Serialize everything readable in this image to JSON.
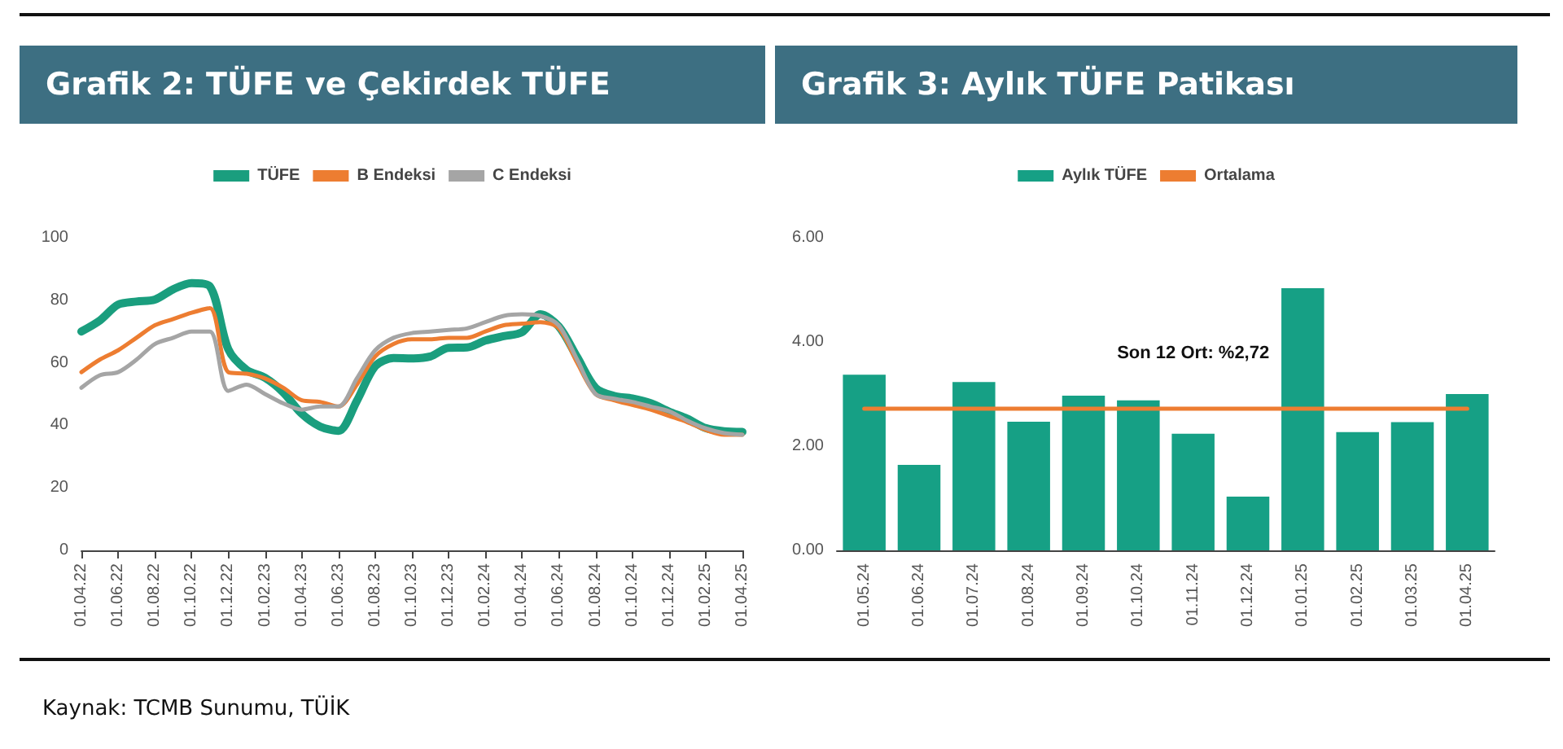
{
  "chart_data": [
    {
      "type": "line",
      "title": "Grafik 2: TÜFE ve Çekirdek TÜFE",
      "categories": [
        "01.04.22",
        null,
        "01.06.22",
        null,
        "01.08.22",
        null,
        "01.10.22",
        null,
        "01.12.22",
        null,
        "01.02.23",
        null,
        "01.04.23",
        null,
        "01.06.23",
        null,
        "01.08.23",
        null,
        "01.10.23",
        null,
        "01.12.23",
        null,
        "01.02.24",
        null,
        "01.04.24",
        null,
        "01.06.24",
        null,
        "01.08.24",
        null,
        "01.10.24",
        null,
        "01.12.24",
        null,
        "01.02.25",
        null,
        "01.04.25"
      ],
      "series": [
        {
          "name": "TÜFE",
          "color": "#1a9e7e",
          "values": [
            70,
            73.5,
            78.6,
            79.6,
            80.2,
            83.5,
            85.5,
            84.4,
            64.3,
            57.7,
            55.2,
            50.5,
            43.7,
            39.6,
            38.2,
            47.8,
            58.9,
            61.5,
            61.4,
            62,
            64.8,
            64.9,
            67.1,
            68.5,
            69.8,
            75.5,
            71.6,
            61.8,
            52,
            49.4,
            48.6,
            47.1,
            44.4,
            42.1,
            39.1,
            38.1,
            37.9
          ]
        },
        {
          "name": "B Endeksi",
          "color": "#ed7d31",
          "values": [
            57,
            61,
            64,
            68,
            72,
            74,
            76,
            77.5,
            57,
            56.5,
            55,
            52,
            48,
            47.5,
            46,
            53,
            62,
            66,
            67.5,
            67.5,
            68,
            68,
            70,
            72,
            72.5,
            73,
            71,
            60,
            50,
            48,
            46.5,
            45,
            43,
            41,
            38.5,
            37,
            37
          ]
        },
        {
          "name": "C Endeksi",
          "color": "#a5a5a5",
          "values": [
            52,
            56,
            57,
            61,
            66,
            68,
            70,
            70,
            51,
            53,
            50,
            47,
            45,
            46,
            46,
            55,
            64,
            68,
            69.5,
            70,
            70.5,
            71,
            73,
            75,
            75.5,
            75,
            72,
            61,
            50,
            48.5,
            47.5,
            46,
            44.5,
            41.5,
            39,
            37.5,
            37
          ]
        }
      ],
      "ylim": [
        0,
        100
      ],
      "yticks": [
        0,
        20,
        40,
        60,
        80,
        100
      ],
      "grid": false,
      "legend": "top",
      "marker": "none",
      "line_style": "solid",
      "annotations": [
        "Kaynak: TCMB Sunumu, TÜİK"
      ]
    },
    {
      "type": "bar",
      "title": "Grafik 3: Aylık TÜFE Patikası",
      "categories": [
        "01.05.24",
        "01.06.24",
        "01.07.24",
        "01.08.24",
        "01.09.24",
        "01.10.24",
        "01.11.24",
        "01.12.24",
        "01.01.25",
        "01.02.25",
        "01.03.25",
        "01.04.25"
      ],
      "series": [
        {
          "name": "Aylık TÜFE",
          "color": "#16a085",
          "values": [
            3.37,
            1.64,
            3.23,
            2.47,
            2.97,
            2.88,
            2.24,
            1.03,
            5.03,
            2.27,
            2.46,
            3.0
          ]
        },
        {
          "name": "Ortalama",
          "type": "line",
          "color": "#ed7d31",
          "values": [
            2.72,
            2.72,
            2.72,
            2.72,
            2.72,
            2.72,
            2.72,
            2.72,
            2.72,
            2.72,
            2.72,
            2.72
          ]
        }
      ],
      "ylim": [
        0,
        6
      ],
      "yticks": [
        {
          "value": 0,
          "label": "0.00"
        },
        {
          "value": 2,
          "label": "2.00"
        },
        {
          "value": 4,
          "label": "4.00"
        },
        {
          "value": 6,
          "label": "6.00"
        }
      ],
      "grid": false,
      "legend": "top",
      "marker": "none",
      "annotations": [
        {
          "text": "Son 12 Ort: %2,72",
          "x": "01.11.24",
          "y": 2.72
        }
      ]
    }
  ]
}
